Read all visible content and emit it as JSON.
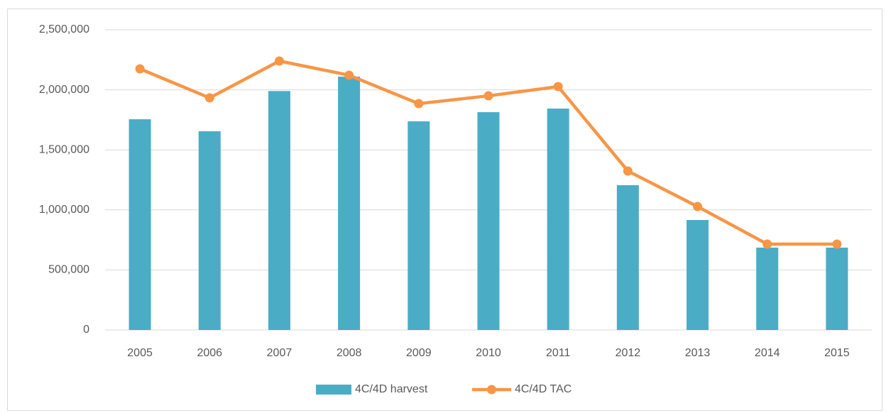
{
  "chart_data": {
    "type": "bar-line",
    "categories": [
      "2005",
      "2006",
      "2007",
      "2008",
      "2009",
      "2010",
      "2011",
      "2012",
      "2013",
      "2014",
      "2015"
    ],
    "series": [
      {
        "name": "4C/4D harvest",
        "type": "bar",
        "color": "#4bacc6",
        "values": [
          1755000,
          1655000,
          1990000,
          2110000,
          1738000,
          1814000,
          1844000,
          1206000,
          916000,
          686000,
          686000
        ]
      },
      {
        "name": "4C/4D TAC",
        "type": "line",
        "color": "#f79646",
        "values": [
          2175000,
          1933000,
          2240000,
          2122000,
          1885000,
          1950000,
          2027000,
          1324000,
          1028000,
          715000,
          715000
        ]
      }
    ],
    "ylim": [
      0,
      2500000
    ],
    "yticks": [
      0,
      {
        "value": 500000,
        "label": "500,000"
      },
      {
        "value": 1000000,
        "label": "1,000,000"
      },
      {
        "value": 1500000,
        "label": "1,500,000"
      },
      {
        "value": 2000000,
        "label": "2,000,000"
      },
      {
        "value": 2500000,
        "label": "2,500,000"
      }
    ],
    "grid": true,
    "legend": "bottom"
  }
}
